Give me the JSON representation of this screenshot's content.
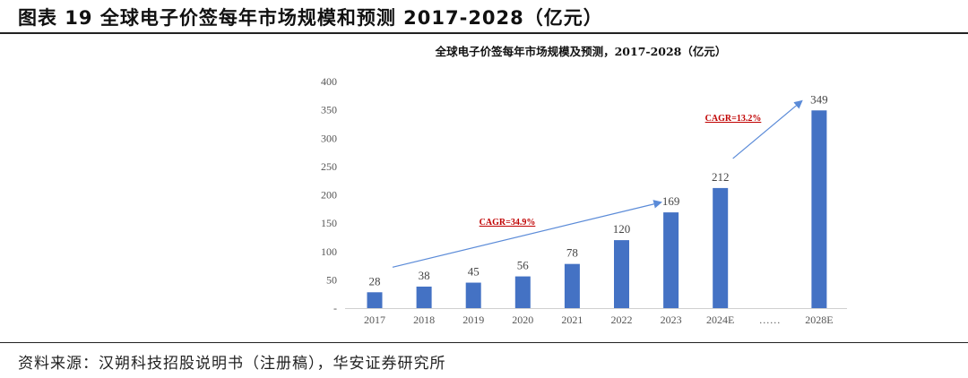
{
  "figure_title": "图表 19 全球电子价签每年市场规模和预测 2017-2028（亿元）",
  "source": "资料来源：汉朔科技招股说明书（注册稿），华安证券研究所",
  "colors": {
    "bar": "#4472C4",
    "arrow": "#5B8BD8",
    "cagr": "#C00000"
  },
  "chart_data": {
    "type": "bar",
    "title": "全球电子价签每年市场规模及预测，2017-2028（亿元）",
    "categories": [
      "2017",
      "2018",
      "2019",
      "2020",
      "2021",
      "2022",
      "2023",
      "2024E",
      "……",
      "2028E"
    ],
    "values": [
      28,
      38,
      45,
      56,
      78,
      120,
      169,
      212,
      null,
      349
    ],
    "yticks": [
      "-",
      "50",
      "100",
      "150",
      "200",
      "250",
      "300",
      "350",
      "400"
    ],
    "ylim": [
      0,
      400
    ],
    "xlabel": "",
    "ylabel": "",
    "grid": false,
    "annotations": [
      {
        "text": "CAGR=34.9%",
        "from": "2017",
        "to": "2023"
      },
      {
        "text": "CAGR=13.2%",
        "from": "2024E",
        "to": "2028E"
      }
    ]
  }
}
